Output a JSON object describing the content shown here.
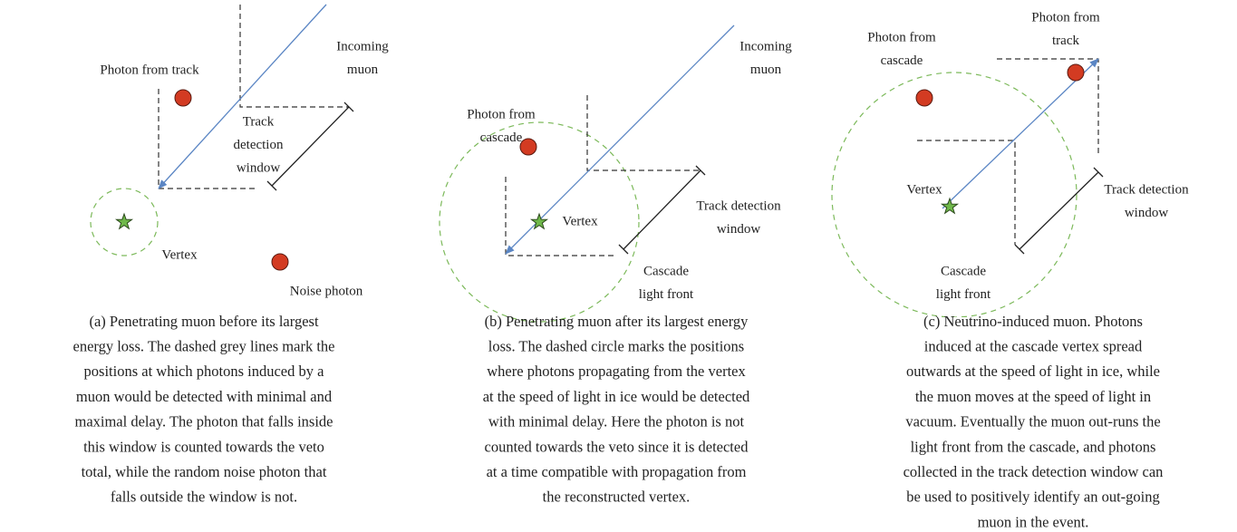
{
  "panels": [
    {
      "labels": [
        [
          "Incoming",
          "muon"
        ],
        [
          "Photon from track"
        ],
        [
          "Track",
          "detection",
          "window"
        ],
        [
          "Vertex"
        ],
        [
          "Noise photon"
        ]
      ],
      "caption": [
        "(a)  Penetrating muon before its largest",
        "energy loss. The dashed grey lines mark the",
        "positions at which photons induced by a",
        "muon would be detected with minimal and",
        "maximal delay. The photon that falls inside",
        "this window is counted towards the veto",
        "total, while the random noise photon that",
        "falls outside the window is not."
      ]
    },
    {
      "labels": [
        [
          "Incoming",
          "muon"
        ],
        [
          "Photon from",
          "cascade"
        ],
        [
          "Vertex"
        ],
        [
          "Track detection",
          "window"
        ],
        [
          "Cascade",
          "light front"
        ]
      ],
      "caption": [
        "(b)  Penetrating muon after its largest energy",
        "loss. The dashed circle marks the positions",
        "where photons propagating from the vertex",
        "at the speed of light in ice would be detected",
        "with minimal delay. Here the photon is not",
        "counted towards the veto since it is detected",
        "at a time compatible with propagation from",
        "the reconstructed vertex."
      ]
    },
    {
      "labels": [
        [
          "Photon from",
          "track"
        ],
        [
          "Photon from",
          "cascade"
        ],
        [
          "Vertex"
        ],
        [
          "Track detection",
          "window"
        ],
        [
          "Cascade",
          "light front"
        ]
      ],
      "caption": [
        "(c)  Neutrino-induced muon. Photons",
        "induced at the cascade vertex spread",
        "outwards at the speed of light in ice, while",
        "the muon moves at the speed of light in",
        "vacuum. Eventually the muon out-runs the",
        "light front from the cascade, and photons",
        "collected in the track detection window can",
        "be used to positively identify an out-going",
        "muon in the event."
      ]
    }
  ]
}
